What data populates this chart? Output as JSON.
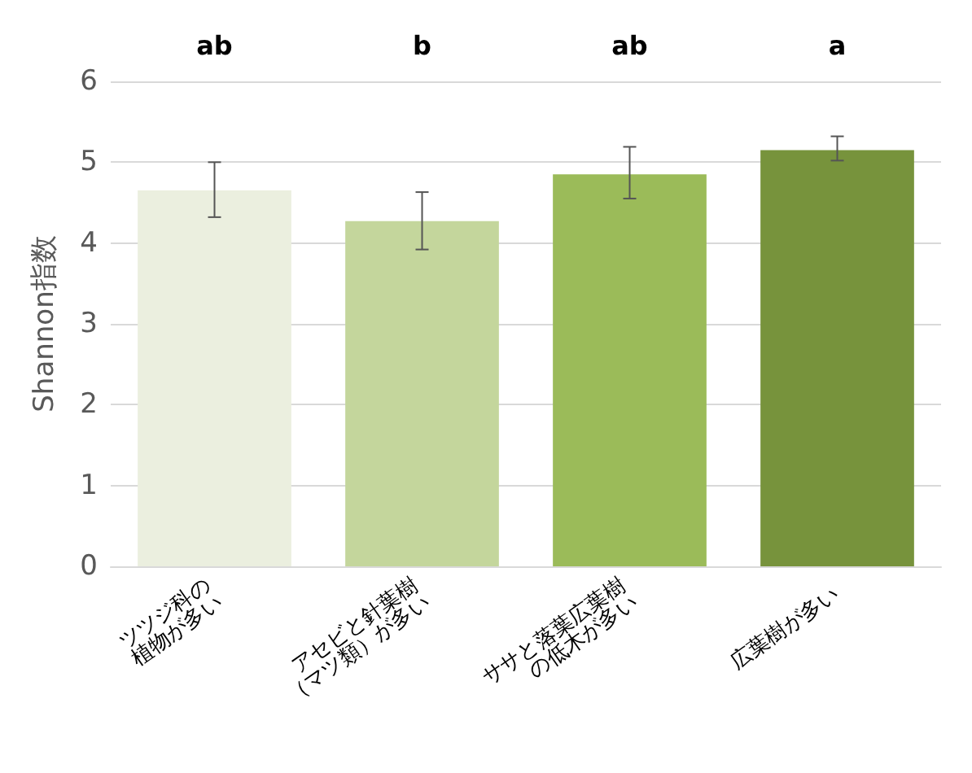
{
  "chart_data": {
    "type": "bar",
    "ylabel": "Shannon指数",
    "categories": [
      "ツツジ科の\n植物が多い",
      "アセビと針葉樹\n（マツ類）が多い",
      "ササと落葉広葉樹\nの低木が多い",
      "広葉樹が多い"
    ],
    "values": [
      4.65,
      4.27,
      4.85,
      5.15
    ],
    "colors": [
      "#ebefdf",
      "#c4d69c",
      "#9bbb59",
      "#77933c"
    ],
    "errors": [
      [
        4.32,
        5.0
      ],
      [
        3.92,
        4.63
      ],
      [
        4.55,
        5.19
      ],
      [
        5.02,
        5.32
      ]
    ],
    "ylim": [
      0,
      6
    ],
    "yticks": [
      0,
      1,
      2,
      3,
      4,
      5,
      6
    ],
    "grid": "y",
    "annotations": [
      "ab",
      "b",
      "ab",
      "a"
    ]
  }
}
